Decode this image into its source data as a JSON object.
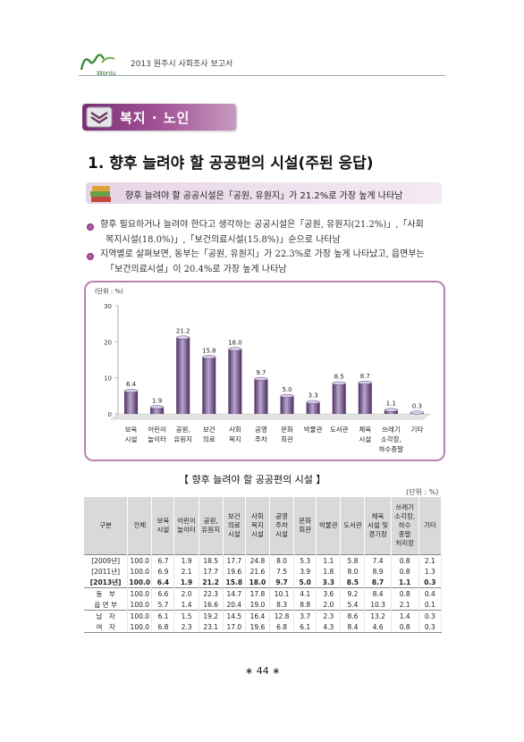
{
  "header": {
    "doc_title": "2013 원주시 사회조사 보고서",
    "logo_text": "Wonju"
  },
  "section": {
    "label": "복지 · 노인"
  },
  "title": "1. 향후 늘려야 할 공공편의 시설(주된 응답)",
  "highlight": "향후 늘려야 할 공공시설은「공원, 유원지」가 21.2%로 가장 높게 나타남",
  "bullets": [
    {
      "line1": "향후 필요하거나 늘려야 한다고 생각하는 공공시설은「공원, 유원지(21.2%)」,「사회",
      "line2": "복지시설(18.0%)」,「보건의료시설(15.8%)」순으로 나타남"
    },
    {
      "line1": "지역별로 살펴보면, 동부는「공원, 유원지」가 22.3%로 가장 높게 나타났고, 읍면부는",
      "line2": "「보건의료시설」이 20.4%로 가장 높게 나타남"
    }
  ],
  "chart_data": {
    "type": "bar",
    "unit_label": "(단위 : %)",
    "categories": [
      [
        "보육",
        "시설"
      ],
      [
        "어린이",
        "놀이터"
      ],
      [
        "공원,",
        "유원지"
      ],
      [
        "보건",
        "의료"
      ],
      [
        "사회",
        "복지"
      ],
      [
        "공영",
        "주차"
      ],
      [
        "문화",
        "회관"
      ],
      [
        "박물관"
      ],
      [
        "도서관"
      ],
      [
        "체육",
        "시설"
      ],
      [
        "쓰레기",
        "소각장,",
        "하수종말"
      ],
      [
        "기타"
      ]
    ],
    "values": [
      6.4,
      1.9,
      21.2,
      15.8,
      18.0,
      9.7,
      5.0,
      3.3,
      8.5,
      8.7,
      1.1,
      0.3
    ],
    "value_labels": [
      "6.4",
      "1.9",
      "21.2",
      "15.8",
      "18.0",
      "9.7",
      "5.0",
      "3.3",
      "8.5",
      "8.7",
      "1.1",
      "0.3"
    ],
    "yticks": [
      "0",
      "10",
      "20",
      "30"
    ],
    "ylim": [
      0,
      30
    ],
    "bar_color": "#6e4a86"
  },
  "table": {
    "title": "【 향후 늘려야 할 공공편의 시설 】",
    "unit": "(단위 : %)",
    "headers": [
      [
        "구분"
      ],
      [
        "전체"
      ],
      [
        "보육",
        "시설"
      ],
      [
        "어린이",
        "놀이터"
      ],
      [
        "공원,",
        "유원지"
      ],
      [
        "보건",
        "의료",
        "시설"
      ],
      [
        "사회",
        "복지",
        "시설"
      ],
      [
        "공영",
        "주차",
        "시설"
      ],
      [
        "문화",
        "회관"
      ],
      [
        "박물관"
      ],
      [
        "도서관"
      ],
      [
        "체육",
        "시설 및",
        "경기장"
      ],
      [
        "쓰레기",
        "소각장,",
        "하수",
        "종말",
        "처리장"
      ],
      [
        "기타"
      ]
    ],
    "rows": [
      {
        "label": "[2009년]",
        "cells": [
          "100.0",
          "6.7",
          "1.9",
          "18.5",
          "17.7",
          "24.8",
          "8.0",
          "5.3",
          "1.1",
          "5.8",
          "7.4",
          "0.8",
          "2.1"
        ]
      },
      {
        "label": "[2011년]",
        "cells": [
          "100.0",
          "6.9",
          "2.1",
          "17.7",
          "19.6",
          "21.6",
          "7.5",
          "3.9",
          "1.8",
          "8.0",
          "8.9",
          "0.8",
          "1.3"
        ]
      },
      {
        "label": "[2013년]",
        "cells": [
          "100.0",
          "6.4",
          "1.9",
          "21.2",
          "15.8",
          "18.0",
          "9.7",
          "5.0",
          "3.3",
          "8.5",
          "8.7",
          "1.1",
          "0.3"
        ]
      },
      {
        "label": "동　부",
        "cells": [
          "100.0",
          "6.6",
          "2.0",
          "22.3",
          "14.7",
          "17.8",
          "10.1",
          "4.1",
          "3.6",
          "9.2",
          "8.4",
          "0.8",
          "0.4"
        ]
      },
      {
        "label": "읍 면 부",
        "cells": [
          "100.0",
          "5.7",
          "1.4",
          "16.6",
          "20.4",
          "19.0",
          "8.3",
          "8.8",
          "2.0",
          "5.4",
          "10.3",
          "2.1",
          "0.1"
        ]
      },
      {
        "label": "남　자",
        "cells": [
          "100.0",
          "6.1",
          "1.5",
          "19.2",
          "14.5",
          "16.4",
          "12.8",
          "3.7",
          "2.3",
          "8.6",
          "13.2",
          "1.4",
          "0.3"
        ]
      },
      {
        "label": "여　자",
        "cells": [
          "100.0",
          "6.8",
          "2.3",
          "23.1",
          "17.0",
          "19.6",
          "6.8",
          "6.1",
          "4.3",
          "8.4",
          "4.6",
          "0.8",
          "0.3"
        ]
      }
    ]
  },
  "page_number": "∗ 44 ∗"
}
